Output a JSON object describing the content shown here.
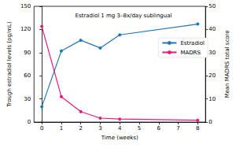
{
  "chart_data": {
    "type": "line",
    "title": "Estradiol 1 mg 3–8x/day sublingual",
    "xlabel": "Time (weeks)",
    "ylabel": "Trough estradiol levels (pg/mL)",
    "y2label": "Mean MADRS total score",
    "x": [
      0,
      1,
      2,
      3,
      4,
      8
    ],
    "series": [
      {
        "name": "Estradiol",
        "color": "#1f77b4",
        "marker": "circle",
        "values": [
          20,
          92,
          106,
          96,
          113,
          127
        ]
      },
      {
        "name": "MADRS",
        "color": "#e6197e",
        "marker": "circle",
        "axis": "y2",
        "values": [
          41.3,
          11,
          4.5,
          1.7,
          1.3,
          0.8
        ]
      }
    ],
    "xlim": [
      -0.4,
      8.4
    ],
    "xticks": [
      0,
      1,
      2,
      3,
      4,
      5,
      6,
      7,
      8
    ],
    "ylim": [
      0,
      150
    ],
    "yticks": [
      0,
      30,
      60,
      90,
      120,
      150
    ],
    "y2lim": [
      0,
      50
    ],
    "y2ticks": [
      0,
      10,
      20,
      30,
      40,
      50
    ],
    "grid": false,
    "legend": "right"
  }
}
